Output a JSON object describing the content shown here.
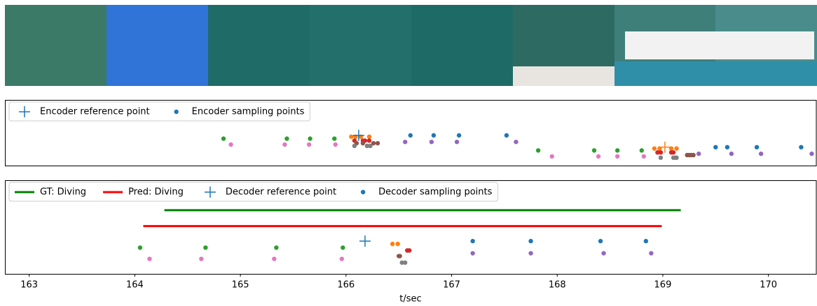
{
  "chart_data": {
    "type": "scatter",
    "xlabel": "t/sec",
    "xlim": [
      162.77,
      170.46
    ],
    "xticks": [
      163,
      164,
      165,
      166,
      167,
      168,
      169,
      170
    ],
    "panels": [
      {
        "ylim": [
          0,
          10
        ],
        "segments": [],
        "reference": {
          "name": "Encoder reference point",
          "color": "#1f77b4",
          "x": [
            166.12,
            169.02
          ],
          "y": [
            4.6,
            2.8
          ],
          "colors": [
            "#1f77b4",
            "#ff7f0e"
          ]
        },
        "sampling": {
          "name": "Encoder sampling points",
          "color": "#1f77b4",
          "groups": [
            {
              "color": "#2ca02c",
              "x": [
                164.84,
                165.44,
                165.66,
                165.89,
                167.82,
                168.35,
                168.57,
                168.8
              ],
              "y": [
                4.1,
                4.1,
                4.1,
                4.1,
                2.3,
                2.3,
                2.3,
                2.3
              ]
            },
            {
              "color": "#e377c2",
              "x": [
                164.91,
                165.42,
                165.65,
                165.9,
                167.95,
                168.39,
                168.57,
                168.82
              ],
              "y": [
                3.2,
                3.2,
                3.2,
                3.2,
                1.4,
                1.4,
                1.4,
                1.4
              ]
            },
            {
              "color": "#1f77b4",
              "x": [
                166.61,
                166.83,
                167.07,
                167.52,
                169.5,
                169.61,
                169.89,
                170.31
              ],
              "y": [
                4.6,
                4.6,
                4.6,
                4.6,
                2.8,
                2.8,
                2.8,
                2.8
              ]
            },
            {
              "color": "#9467bd",
              "x": [
                166.56,
                166.81,
                167.05,
                167.61,
                169.34,
                169.65,
                169.93,
                170.41
              ],
              "y": [
                3.6,
                3.6,
                3.6,
                3.6,
                1.8,
                1.8,
                1.8,
                1.8
              ]
            },
            {
              "color": "#ff7f0e",
              "x": [
                166.05,
                166.09,
                166.14,
                166.22,
                168.92,
                168.97,
                169.08,
                169.13
              ],
              "y": [
                4.4,
                4.4,
                4.4,
                4.4,
                2.6,
                2.6,
                2.6,
                2.6
              ]
            },
            {
              "color": "#d62728",
              "x": [
                166.08,
                166.16,
                166.18,
                166.22,
                168.95,
                168.98,
                169.08,
                169.1
              ],
              "y": [
                3.8,
                3.8,
                3.8,
                3.8,
                2.0,
                2.0,
                2.0,
                2.0
              ]
            },
            {
              "color": "#8c564b",
              "x": [
                166.1,
                166.16,
                166.26,
                166.3,
                169.23,
                169.25,
                169.27,
                169.29
              ],
              "y": [
                3.4,
                3.4,
                3.4,
                3.4,
                1.6,
                1.6,
                1.6,
                1.6
              ]
            },
            {
              "color": "#7f7f7f",
              "x": [
                166.08,
                166.2,
                166.2,
                166.23,
                168.98,
                169.1,
                169.12,
                169.13
              ],
              "y": [
                3.0,
                3.0,
                3.0,
                3.0,
                1.2,
                1.2,
                1.2,
                1.2
              ]
            }
          ]
        }
      },
      {
        "ylim": [
          0,
          10
        ],
        "segments": [
          {
            "name": "GT: Diving",
            "color": "#008000",
            "x": [
              164.28,
              169.17
            ],
            "y": [
              6.8,
              6.8
            ]
          },
          {
            "name": "Pred: Diving",
            "color": "#ff0000",
            "x": [
              164.08,
              168.99
            ],
            "y": [
              5.1,
              5.1
            ]
          }
        ],
        "reference": {
          "name": "Decoder reference point",
          "color": "#1f77b4",
          "x": [
            166.18
          ],
          "y": [
            3.5
          ],
          "colors": [
            "#1f77b4"
          ]
        },
        "sampling": {
          "name": "Decoder sampling points",
          "color": "#1f77b4",
          "groups": [
            {
              "color": "#2ca02c",
              "x": [
                164.05,
                164.67,
                165.34,
                165.97
              ],
              "y": [
                2.8,
                2.8,
                2.8,
                2.8
              ]
            },
            {
              "color": "#e377c2",
              "x": [
                164.14,
                164.63,
                165.32,
                165.96
              ],
              "y": [
                1.6,
                1.6,
                1.6,
                1.6
              ]
            },
            {
              "color": "#1f77b4",
              "x": [
                167.2,
                167.75,
                168.41,
                168.84
              ],
              "y": [
                3.5,
                3.5,
                3.5,
                3.5
              ]
            },
            {
              "color": "#9467bd",
              "x": [
                167.2,
                167.75,
                168.44,
                168.89
              ],
              "y": [
                2.2,
                2.2,
                2.2,
                2.2
              ]
            },
            {
              "color": "#ff7f0e",
              "x": [
                166.44,
                166.49
              ],
              "y": [
                3.2,
                3.2
              ]
            },
            {
              "color": "#d62728",
              "x": [
                166.58,
                166.6
              ],
              "y": [
                2.5,
                2.5
              ]
            },
            {
              "color": "#8c564b",
              "x": [
                166.5,
                166.51
              ],
              "y": [
                1.9,
                1.9
              ]
            },
            {
              "color": "#7f7f7f",
              "x": [
                166.53,
                166.56
              ],
              "y": [
                1.2,
                1.2
              ]
            }
          ]
        }
      }
    ]
  }
}
